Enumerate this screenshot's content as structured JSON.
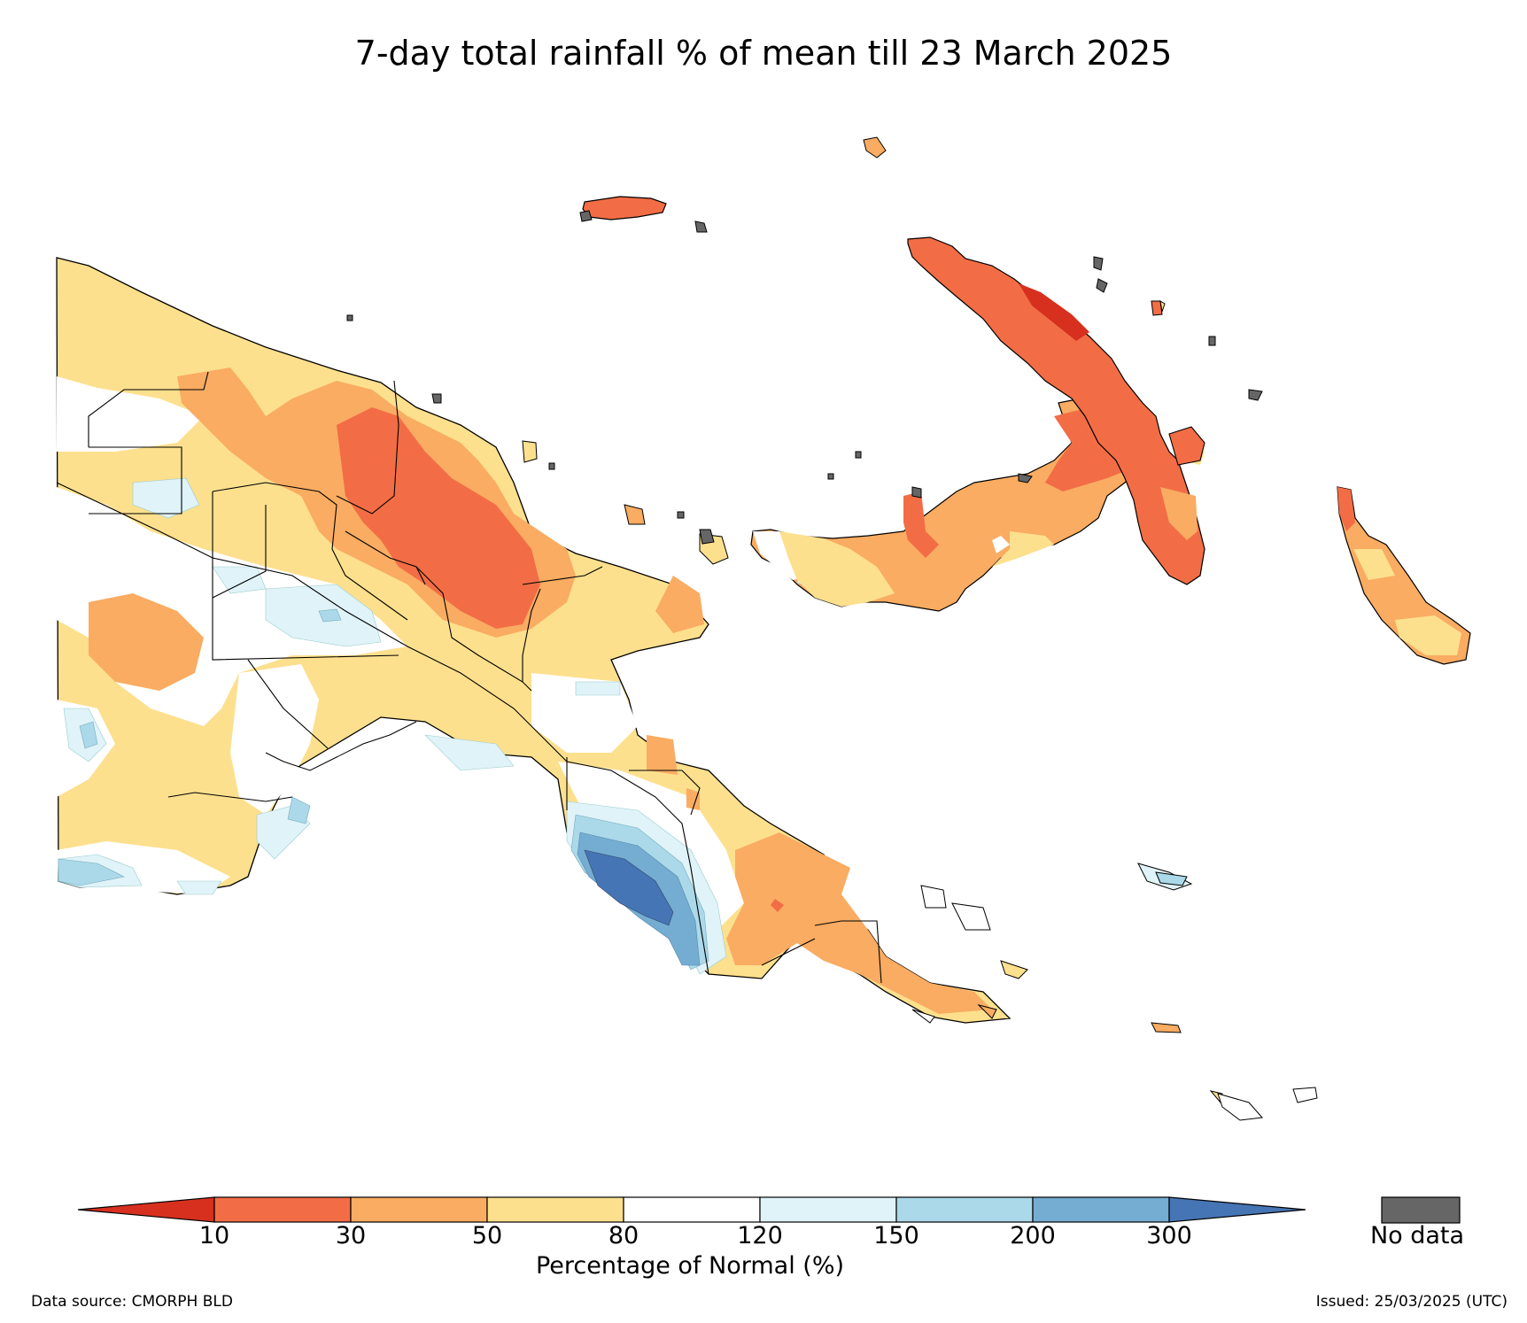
{
  "title": "7-day total rainfall % of mean till 23 March 2025",
  "colorbar": {
    "ticks": [
      "10",
      "30",
      "50",
      "80",
      "120",
      "150",
      "200",
      "300"
    ],
    "label": "Percentage of Normal (%)",
    "colors": {
      "below_10": "#d7301f",
      "10_30": "#f26d45",
      "30_50": "#f9ac62",
      "50_80": "#fde08e",
      "80_120": "#ffffff",
      "120_150": "#e0f3f8",
      "150_200": "#abd9e9",
      "200_300": "#74add1",
      "above_300": "#4575b4"
    }
  },
  "no_data": {
    "label": "No data",
    "color": "#666666"
  },
  "source": "Data source: CMORPH BLD",
  "issued": "Issued: 25/03/2025 (UTC)"
}
